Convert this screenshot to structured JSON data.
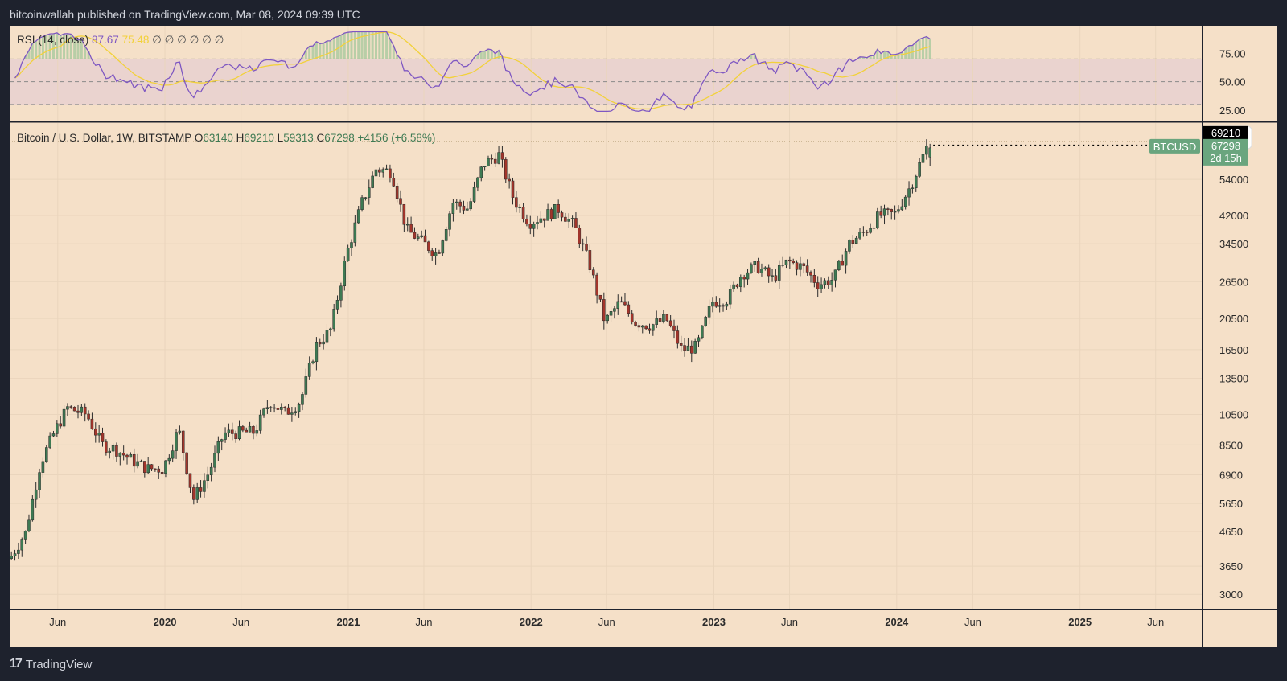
{
  "header": {
    "published": "bitcoinwallah published on TradingView.com, Mar 08, 2024 09:39 UTC"
  },
  "footer": {
    "brand": "TradingView"
  },
  "rsi": {
    "label": "RSI (14, close)",
    "value": "87.67",
    "ma_value": "75.48",
    "extras": [
      "∅",
      "∅",
      "∅",
      "∅",
      "∅",
      "∅"
    ],
    "ticks": [
      "75.00",
      "50.00",
      "25.00"
    ],
    "tick_values": [
      75,
      50,
      25
    ],
    "colors": {
      "line": "#7e57c2",
      "ma": "#f2d13a"
    }
  },
  "main": {
    "symbol": "Bitcoin / U.S. Dollar, 1W, BITSTAMP",
    "o_label": "O",
    "o": "63140",
    "h_label": "H",
    "h": "69210",
    "l_label": "L",
    "l": "59313",
    "c_label": "C",
    "c": "67298",
    "change": "+4156 (+6.58%)",
    "currency": "USD",
    "high_tag": "69210",
    "symbol_tag": "BTCUSD",
    "last_price_tag": "67298",
    "countdown": "2d 15h",
    "colors": {
      "up": "#3e7a53",
      "down": "#a3352b",
      "tag": "#6aa57e"
    }
  },
  "chart_data": {
    "type": "candlestick",
    "title": "Bitcoin / U.S. Dollar, 1W, BITSTAMP",
    "y_scale": "log",
    "ylim": [
      2700,
      80000
    ],
    "y_ticks": [
      3000,
      3650,
      4650,
      5650,
      6900,
      8500,
      10500,
      13500,
      16500,
      20500,
      26500,
      34500,
      42000,
      54000
    ],
    "x_ticks": [
      "Jun",
      "2020",
      "Jun",
      "2021",
      "Jun",
      "2022",
      "Jun",
      "2023",
      "Jun",
      "2024",
      "Jun",
      "2025",
      "Jun"
    ],
    "x_tick_dates": [
      "2019-06-01",
      "2020-01-01",
      "2020-06-01",
      "2021-01-01",
      "2021-06-01",
      "2022-01-01",
      "2022-06-01",
      "2023-01-01",
      "2023-06-01",
      "2024-01-01",
      "2024-06-01",
      "2025-01-01",
      "2025-06-01"
    ],
    "xlim": [
      "2019-02-25",
      "2025-09-01"
    ],
    "grid": true,
    "series": [
      {
        "name": "BTCUSD weekly",
        "approximate_closes": [
          [
            "2019-03-01",
            3850
          ],
          [
            "2019-04-01",
            4600
          ],
          [
            "2019-05-01",
            7500
          ],
          [
            "2019-06-01",
            9500
          ],
          [
            "2019-06-24",
            11000
          ],
          [
            "2019-08-01",
            10500
          ],
          [
            "2019-09-01",
            8500
          ],
          [
            "2019-10-01",
            8200
          ],
          [
            "2019-11-01",
            7600
          ],
          [
            "2019-12-01",
            7200
          ],
          [
            "2020-01-01",
            7200
          ],
          [
            "2020-02-01",
            9500
          ],
          [
            "2020-03-01",
            5800
          ],
          [
            "2020-04-01",
            7000
          ],
          [
            "2020-05-01",
            9200
          ],
          [
            "2020-07-01",
            9300
          ],
          [
            "2020-08-01",
            11500
          ],
          [
            "2020-09-01",
            10600
          ],
          [
            "2020-10-01",
            11500
          ],
          [
            "2020-11-01",
            17000
          ],
          [
            "2020-12-01",
            19000
          ],
          [
            "2021-01-01",
            32000
          ],
          [
            "2021-02-01",
            46000
          ],
          [
            "2021-03-01",
            58000
          ],
          [
            "2021-04-01",
            57000
          ],
          [
            "2021-05-01",
            38000
          ],
          [
            "2021-06-01",
            35000
          ],
          [
            "2021-07-01",
            32000
          ],
          [
            "2021-08-01",
            46000
          ],
          [
            "2021-09-01",
            44000
          ],
          [
            "2021-10-01",
            60000
          ],
          [
            "2021-11-01",
            64000
          ],
          [
            "2021-12-01",
            47000
          ],
          [
            "2022-01-01",
            40000
          ],
          [
            "2022-02-01",
            42000
          ],
          [
            "2022-03-01",
            44000
          ],
          [
            "2022-04-01",
            39000
          ],
          [
            "2022-05-01",
            30000
          ],
          [
            "2022-06-01",
            20000
          ],
          [
            "2022-07-01",
            23000
          ],
          [
            "2022-08-01",
            20000
          ],
          [
            "2022-09-01",
            19500
          ],
          [
            "2022-10-01",
            20500
          ],
          [
            "2022-11-01",
            16500
          ],
          [
            "2022-12-01",
            16800
          ],
          [
            "2023-01-01",
            23000
          ],
          [
            "2023-02-01",
            23500
          ],
          [
            "2023-03-01",
            28000
          ],
          [
            "2023-04-01",
            29500
          ],
          [
            "2023-05-01",
            27000
          ],
          [
            "2023-06-01",
            30500
          ],
          [
            "2023-07-01",
            29300
          ],
          [
            "2023-08-01",
            26000
          ],
          [
            "2023-09-01",
            27000
          ],
          [
            "2023-10-01",
            34500
          ],
          [
            "2023-11-01",
            37500
          ],
          [
            "2023-12-01",
            42000
          ],
          [
            "2024-01-01",
            42500
          ],
          [
            "2024-02-01",
            51500
          ],
          [
            "2024-03-04",
            67298
          ]
        ]
      }
    ],
    "last_candle": {
      "open": 63140,
      "high": 69210,
      "low": 59313,
      "close": 67298
    }
  }
}
